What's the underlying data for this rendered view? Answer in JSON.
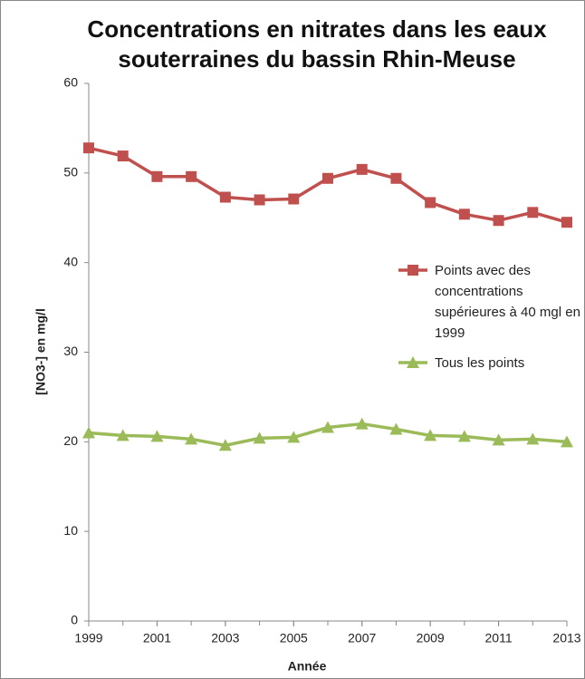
{
  "chart_data": {
    "type": "line",
    "title": "Concentrations en nitrates dans les eaux souterraines du bassin Rhin-Meuse",
    "xlabel": "Année",
    "ylabel": "[NO3-] en mg/l",
    "x": [
      1999,
      2000,
      2001,
      2002,
      2003,
      2004,
      2005,
      2006,
      2007,
      2008,
      2009,
      2010,
      2011,
      2012,
      2013
    ],
    "xlim": [
      1999,
      2013
    ],
    "xticks": [
      1999,
      2001,
      2003,
      2005,
      2007,
      2009,
      2011,
      2013
    ],
    "ylim": [
      0,
      60
    ],
    "yticks": [
      0,
      10,
      20,
      30,
      40,
      50,
      60
    ],
    "grid": false,
    "series": [
      {
        "name": "Points avec des concentrations supérieures à 40 mgl en 1999",
        "color": "#c0504d",
        "marker": "square",
        "values": [
          52.8,
          51.9,
          49.6,
          49.6,
          47.3,
          47.0,
          47.1,
          49.4,
          50.4,
          49.4,
          46.7,
          45.4,
          44.7,
          45.6,
          44.5
        ]
      },
      {
        "name": "Tous les points",
        "color": "#9bbb59",
        "marker": "triangle",
        "values": [
          21.0,
          20.7,
          20.6,
          20.3,
          19.6,
          20.4,
          20.5,
          21.6,
          22.0,
          21.4,
          20.7,
          20.6,
          20.2,
          20.3,
          20.0
        ]
      }
    ]
  }
}
